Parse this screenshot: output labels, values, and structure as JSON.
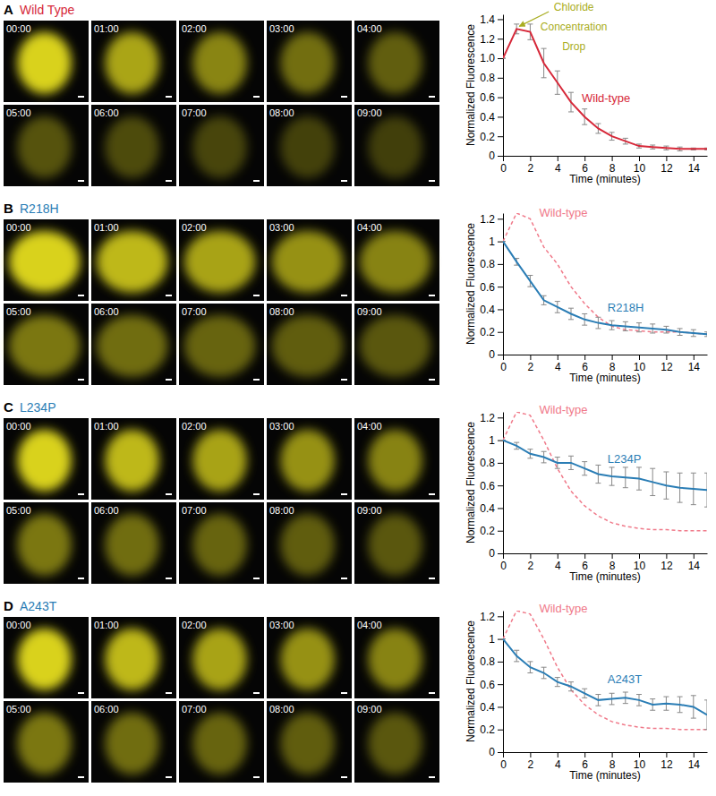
{
  "chart_data": [
    {
      "type": "line",
      "title": "Wild Type",
      "x_label": "Time (minutes)",
      "y_label": "Normalized Fluorescence",
      "x": [
        0,
        1,
        2,
        3,
        4,
        5,
        6,
        7,
        8,
        9,
        10,
        11,
        12,
        13,
        14,
        15
      ],
      "xlim": [
        0,
        15
      ],
      "xticks": [
        0,
        2,
        4,
        6,
        8,
        10,
        12,
        14
      ],
      "ylim": [
        0,
        1.45
      ],
      "yticks": [
        0,
        0.2,
        0.4,
        0.6,
        0.8,
        {
          "value": 1,
          "label": "1.0"
        },
        1.2,
        1.4
      ],
      "annotation": "Chloride Concentration Drop",
      "series": [
        {
          "name": "Wild-type",
          "color": "#d62839",
          "line_style": "solid",
          "values": [
            1.0,
            1.3,
            1.27,
            0.95,
            0.75,
            0.55,
            0.4,
            0.28,
            0.2,
            0.15,
            0.1,
            0.09,
            0.08,
            0.07,
            0.07,
            0.07
          ],
          "errors": [
            0,
            0.05,
            0.08,
            0.15,
            0.12,
            0.1,
            0.08,
            0.05,
            0.04,
            0.03,
            0.02,
            0.02,
            0.02,
            0.02,
            0.01,
            0.01
          ]
        }
      ]
    },
    {
      "type": "line",
      "title": "R218H",
      "x_label": "Time (minutes)",
      "y_label": "Normalized Fluorescence",
      "x": [
        0,
        1,
        2,
        3,
        4,
        5,
        6,
        7,
        8,
        9,
        10,
        11,
        12,
        13,
        14,
        15
      ],
      "xlim": [
        0,
        15
      ],
      "xticks": [
        0,
        2,
        4,
        6,
        8,
        10,
        12,
        14
      ],
      "ylim": [
        0,
        1.25
      ],
      "yticks": [
        0,
        0.2,
        0.4,
        0.6,
        0.8,
        1,
        1.2
      ],
      "series": [
        {
          "name": "Wild-type",
          "color": "#f07a8a",
          "line_style": "dashed",
          "values": [
            1.0,
            1.25,
            1.2,
            0.95,
            0.8,
            0.6,
            0.45,
            0.33,
            0.25,
            0.22,
            0.21,
            0.2,
            0.2,
            0.2,
            0.19,
            0.18
          ]
        },
        {
          "name": "R218H",
          "color": "#2a7db5",
          "line_style": "solid",
          "values": [
            1.0,
            0.82,
            0.65,
            0.48,
            0.42,
            0.36,
            0.31,
            0.28,
            0.26,
            0.25,
            0.24,
            0.23,
            0.22,
            0.2,
            0.19,
            0.18
          ],
          "errors": [
            0,
            0.03,
            0.05,
            0.04,
            0.05,
            0.05,
            0.05,
            0.05,
            0.04,
            0.04,
            0.04,
            0.04,
            0.03,
            0.03,
            0.03,
            0.02
          ]
        }
      ]
    },
    {
      "type": "line",
      "title": "L234P",
      "x_label": "Time (minutes)",
      "y_label": "Normalized Fluorescence",
      "x": [
        0,
        1,
        2,
        3,
        4,
        5,
        6,
        7,
        8,
        9,
        10,
        11,
        12,
        13,
        14,
        15
      ],
      "xlim": [
        0,
        15
      ],
      "xticks": [
        0,
        2,
        4,
        6,
        8,
        10,
        12,
        14
      ],
      "ylim": [
        0,
        1.25
      ],
      "yticks": [
        0,
        0.2,
        0.4,
        0.6,
        0.8,
        1,
        1.2
      ],
      "series": [
        {
          "name": "Wild-type",
          "color": "#f07a8a",
          "line_style": "dashed",
          "values": [
            1.0,
            1.25,
            1.22,
            1.0,
            0.75,
            0.55,
            0.42,
            0.33,
            0.27,
            0.24,
            0.22,
            0.21,
            0.21,
            0.2,
            0.2,
            0.2
          ]
        },
        {
          "name": "L234P",
          "color": "#2a7db5",
          "line_style": "solid",
          "values": [
            1.0,
            0.95,
            0.88,
            0.85,
            0.8,
            0.8,
            0.75,
            0.7,
            0.68,
            0.67,
            0.66,
            0.63,
            0.6,
            0.58,
            0.57,
            0.56
          ],
          "errors": [
            0,
            0.03,
            0.04,
            0.05,
            0.05,
            0.06,
            0.06,
            0.08,
            0.08,
            0.09,
            0.1,
            0.12,
            0.12,
            0.13,
            0.14,
            0.15
          ]
        }
      ]
    },
    {
      "type": "line",
      "title": "A243T",
      "x_label": "Time (minutes)",
      "y_label": "Normalized Fluorescence",
      "x": [
        0,
        1,
        2,
        3,
        4,
        5,
        6,
        7,
        8,
        9,
        10,
        11,
        12,
        13,
        14,
        15
      ],
      "xlim": [
        0,
        15
      ],
      "xticks": [
        0,
        2,
        4,
        6,
        8,
        10,
        12,
        14
      ],
      "ylim": [
        0,
        1.25
      ],
      "yticks": [
        0,
        0.2,
        0.4,
        0.6,
        0.8,
        1,
        1.2
      ],
      "series": [
        {
          "name": "Wild-type",
          "color": "#f07a8a",
          "line_style": "dashed",
          "values": [
            1.0,
            1.25,
            1.22,
            1.0,
            0.75,
            0.55,
            0.42,
            0.33,
            0.27,
            0.24,
            0.22,
            0.21,
            0.21,
            0.2,
            0.2,
            0.2
          ]
        },
        {
          "name": "A243T",
          "color": "#2a7db5",
          "line_style": "solid",
          "values": [
            1.0,
            0.85,
            0.75,
            0.7,
            0.62,
            0.58,
            0.52,
            0.46,
            0.47,
            0.48,
            0.46,
            0.42,
            0.43,
            0.42,
            0.4,
            0.33
          ],
          "errors": [
            0,
            0.05,
            0.05,
            0.05,
            0.04,
            0.04,
            0.04,
            0.05,
            0.05,
            0.05,
            0.05,
            0.05,
            0.06,
            0.07,
            0.1,
            0.13
          ]
        }
      ]
    }
  ],
  "panels": [
    {
      "label": "A",
      "frames": [
        "00:00",
        "01:00",
        "02:00",
        "03:00",
        "04:00",
        "05:00",
        "06:00",
        "07:00",
        "08:00",
        "09:00"
      ]
    },
    {
      "label": "B",
      "frames": [
        "00:00",
        "01:00",
        "02:00",
        "03:00",
        "04:00",
        "05:00",
        "06:00",
        "07:00",
        "08:00",
        "09:00"
      ]
    },
    {
      "label": "C",
      "frames": [
        "00:00",
        "01:00",
        "02:00",
        "03:00",
        "04:00",
        "05:00",
        "06:00",
        "07:00",
        "08:00",
        "09:00"
      ]
    },
    {
      "label": "D",
      "frames": [
        "00:00",
        "01:00",
        "02:00",
        "03:00",
        "04:00",
        "05:00",
        "06:00",
        "07:00",
        "08:00",
        "09:00"
      ]
    }
  ]
}
